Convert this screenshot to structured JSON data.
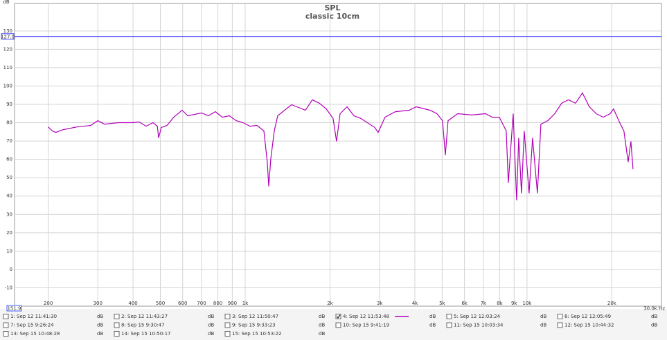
{
  "chart_data": {
    "type": "line",
    "title": "SPL",
    "subtitle": "classic 10cm",
    "y_label": "dB",
    "log_x": true,
    "grid": true,
    "xlim": [
      151.9,
      30000
    ],
    "xlim_labels": [
      "151.9",
      "30.0k Hz"
    ],
    "ylim": [
      -20,
      145
    ],
    "yticks": [
      -10,
      0,
      10,
      20,
      30,
      40,
      50,
      60,
      70,
      80,
      90,
      100,
      110,
      120,
      130
    ],
    "xticks": [
      200,
      300,
      400,
      500,
      600,
      700,
      800,
      900,
      {
        "value": 1000,
        "label": "1k"
      },
      {
        "value": 2000,
        "label": "2k"
      },
      {
        "value": 3000,
        "label": "3k"
      },
      {
        "value": 4000,
        "label": "4k"
      },
      {
        "value": 5000,
        "label": "5k"
      },
      {
        "value": 6000,
        "label": "6k"
      },
      {
        "value": 7000,
        "label": "7k"
      },
      {
        "value": 8000,
        "label": "8k"
      },
      {
        "value": 9000,
        "label": "9k"
      },
      {
        "value": 10000,
        "label": "10k"
      },
      {
        "value": 20000,
        "label": "20k"
      }
    ],
    "cursor": {
      "value": 127.0,
      "label": "127.0"
    },
    "legend_unit": "dB",
    "x": [
      200,
      207,
      213,
      226,
      253,
      283,
      300,
      317,
      355,
      398,
      421,
      445,
      471,
      488,
      493,
      504,
      528,
      558,
      597,
      625,
      700,
      741,
      784,
      830,
      878,
      929,
      983,
      1040,
      1101,
      1165,
      1198,
      1212,
      1233,
      1268,
      1305,
      1380,
      1461,
      1636,
      1731,
      1833,
      1939,
      2051,
      2110,
      2171,
      2298,
      2431,
      2573,
      2881,
      2963,
      3135,
      3414,
      3822,
      4045,
      4529,
      4793,
      5015,
      5131,
      5248,
      5680,
      6360,
      7121,
      7537,
      7974,
      8440,
      8585,
      8932,
      9186,
      9343,
      9557,
      9777,
      10171,
      10464,
      10886,
      11199,
      11850,
      12540,
      13270,
      14040,
      14860,
      15730,
      16640,
      17610,
      18640,
      19720,
      20280,
      21460,
      22080,
      22850,
      23370,
      23770
    ],
    "series": [
      {
        "name": "1: Sep 12 11:41:30",
        "color": "#cc0000",
        "checked": false
      },
      {
        "name": "2: Sep 12 11:43:27",
        "color": "#008000",
        "checked": false
      },
      {
        "name": "3: Sep 12 11:50:47",
        "color": "#800080",
        "checked": false
      },
      {
        "name": "4: Sep 12 11:53:48",
        "color": "#b000b8",
        "checked": true,
        "values": [
          77.7,
          75.5,
          74.7,
          76.2,
          77.7,
          78.5,
          81.1,
          79.2,
          80,
          80,
          80.4,
          78.1,
          80,
          78.1,
          71.7,
          77.4,
          78.5,
          83,
          86.8,
          83.8,
          85.3,
          83.8,
          86,
          83,
          83.8,
          81.1,
          80,
          78.1,
          78.5,
          75.5,
          58.5,
          45.3,
          60.4,
          75.5,
          83.8,
          86.8,
          89.8,
          86.8,
          92.5,
          90.6,
          87.5,
          82.3,
          69.8,
          84.9,
          88.7,
          83.8,
          82.3,
          77.4,
          74.7,
          83,
          86,
          86.8,
          88.7,
          86.8,
          84.9,
          81.1,
          62.3,
          81.1,
          84.9,
          84.2,
          84.9,
          83,
          83,
          75.5,
          47.2,
          84.9,
          37.7,
          71.7,
          41.5,
          75.5,
          41.5,
          71.7,
          41.5,
          79.2,
          81.1,
          84.9,
          90.6,
          92.5,
          90.6,
          96.2,
          88.7,
          84.9,
          83,
          84.9,
          87.5,
          79.2,
          75.5,
          58.5,
          69.8,
          54.7
        ]
      },
      {
        "name": "5: Sep 12 12:03:24",
        "color": "#008080",
        "checked": false
      },
      {
        "name": "6: Sep 12 12:05:49",
        "color": "#d09000",
        "checked": false
      },
      {
        "name": "7: Sep 15 9:26:24",
        "color": "#00a060",
        "checked": false
      },
      {
        "name": "8: Sep 15 9:30:47",
        "color": "#8000b0",
        "checked": false
      },
      {
        "name": "9: Sep 15 9:33:23",
        "color": "#a03090",
        "checked": false
      },
      {
        "name": "10: Sep 15 9:41:19",
        "color": "#0088a8",
        "checked": false
      },
      {
        "name": "11: Sep 15 10:03:34",
        "color": "#c00000",
        "checked": false
      },
      {
        "name": "12: Sep 15 10:44:32",
        "color": "#006000",
        "checked": false
      },
      {
        "name": "13: Sep 15 10:48:28",
        "color": "#000080",
        "checked": false
      },
      {
        "name": "14: Sep 15 10:50:17",
        "color": "#800080",
        "checked": false
      },
      {
        "name": "15: Sep 15 10:53:22",
        "color": "#008040",
        "checked": false
      }
    ]
  }
}
